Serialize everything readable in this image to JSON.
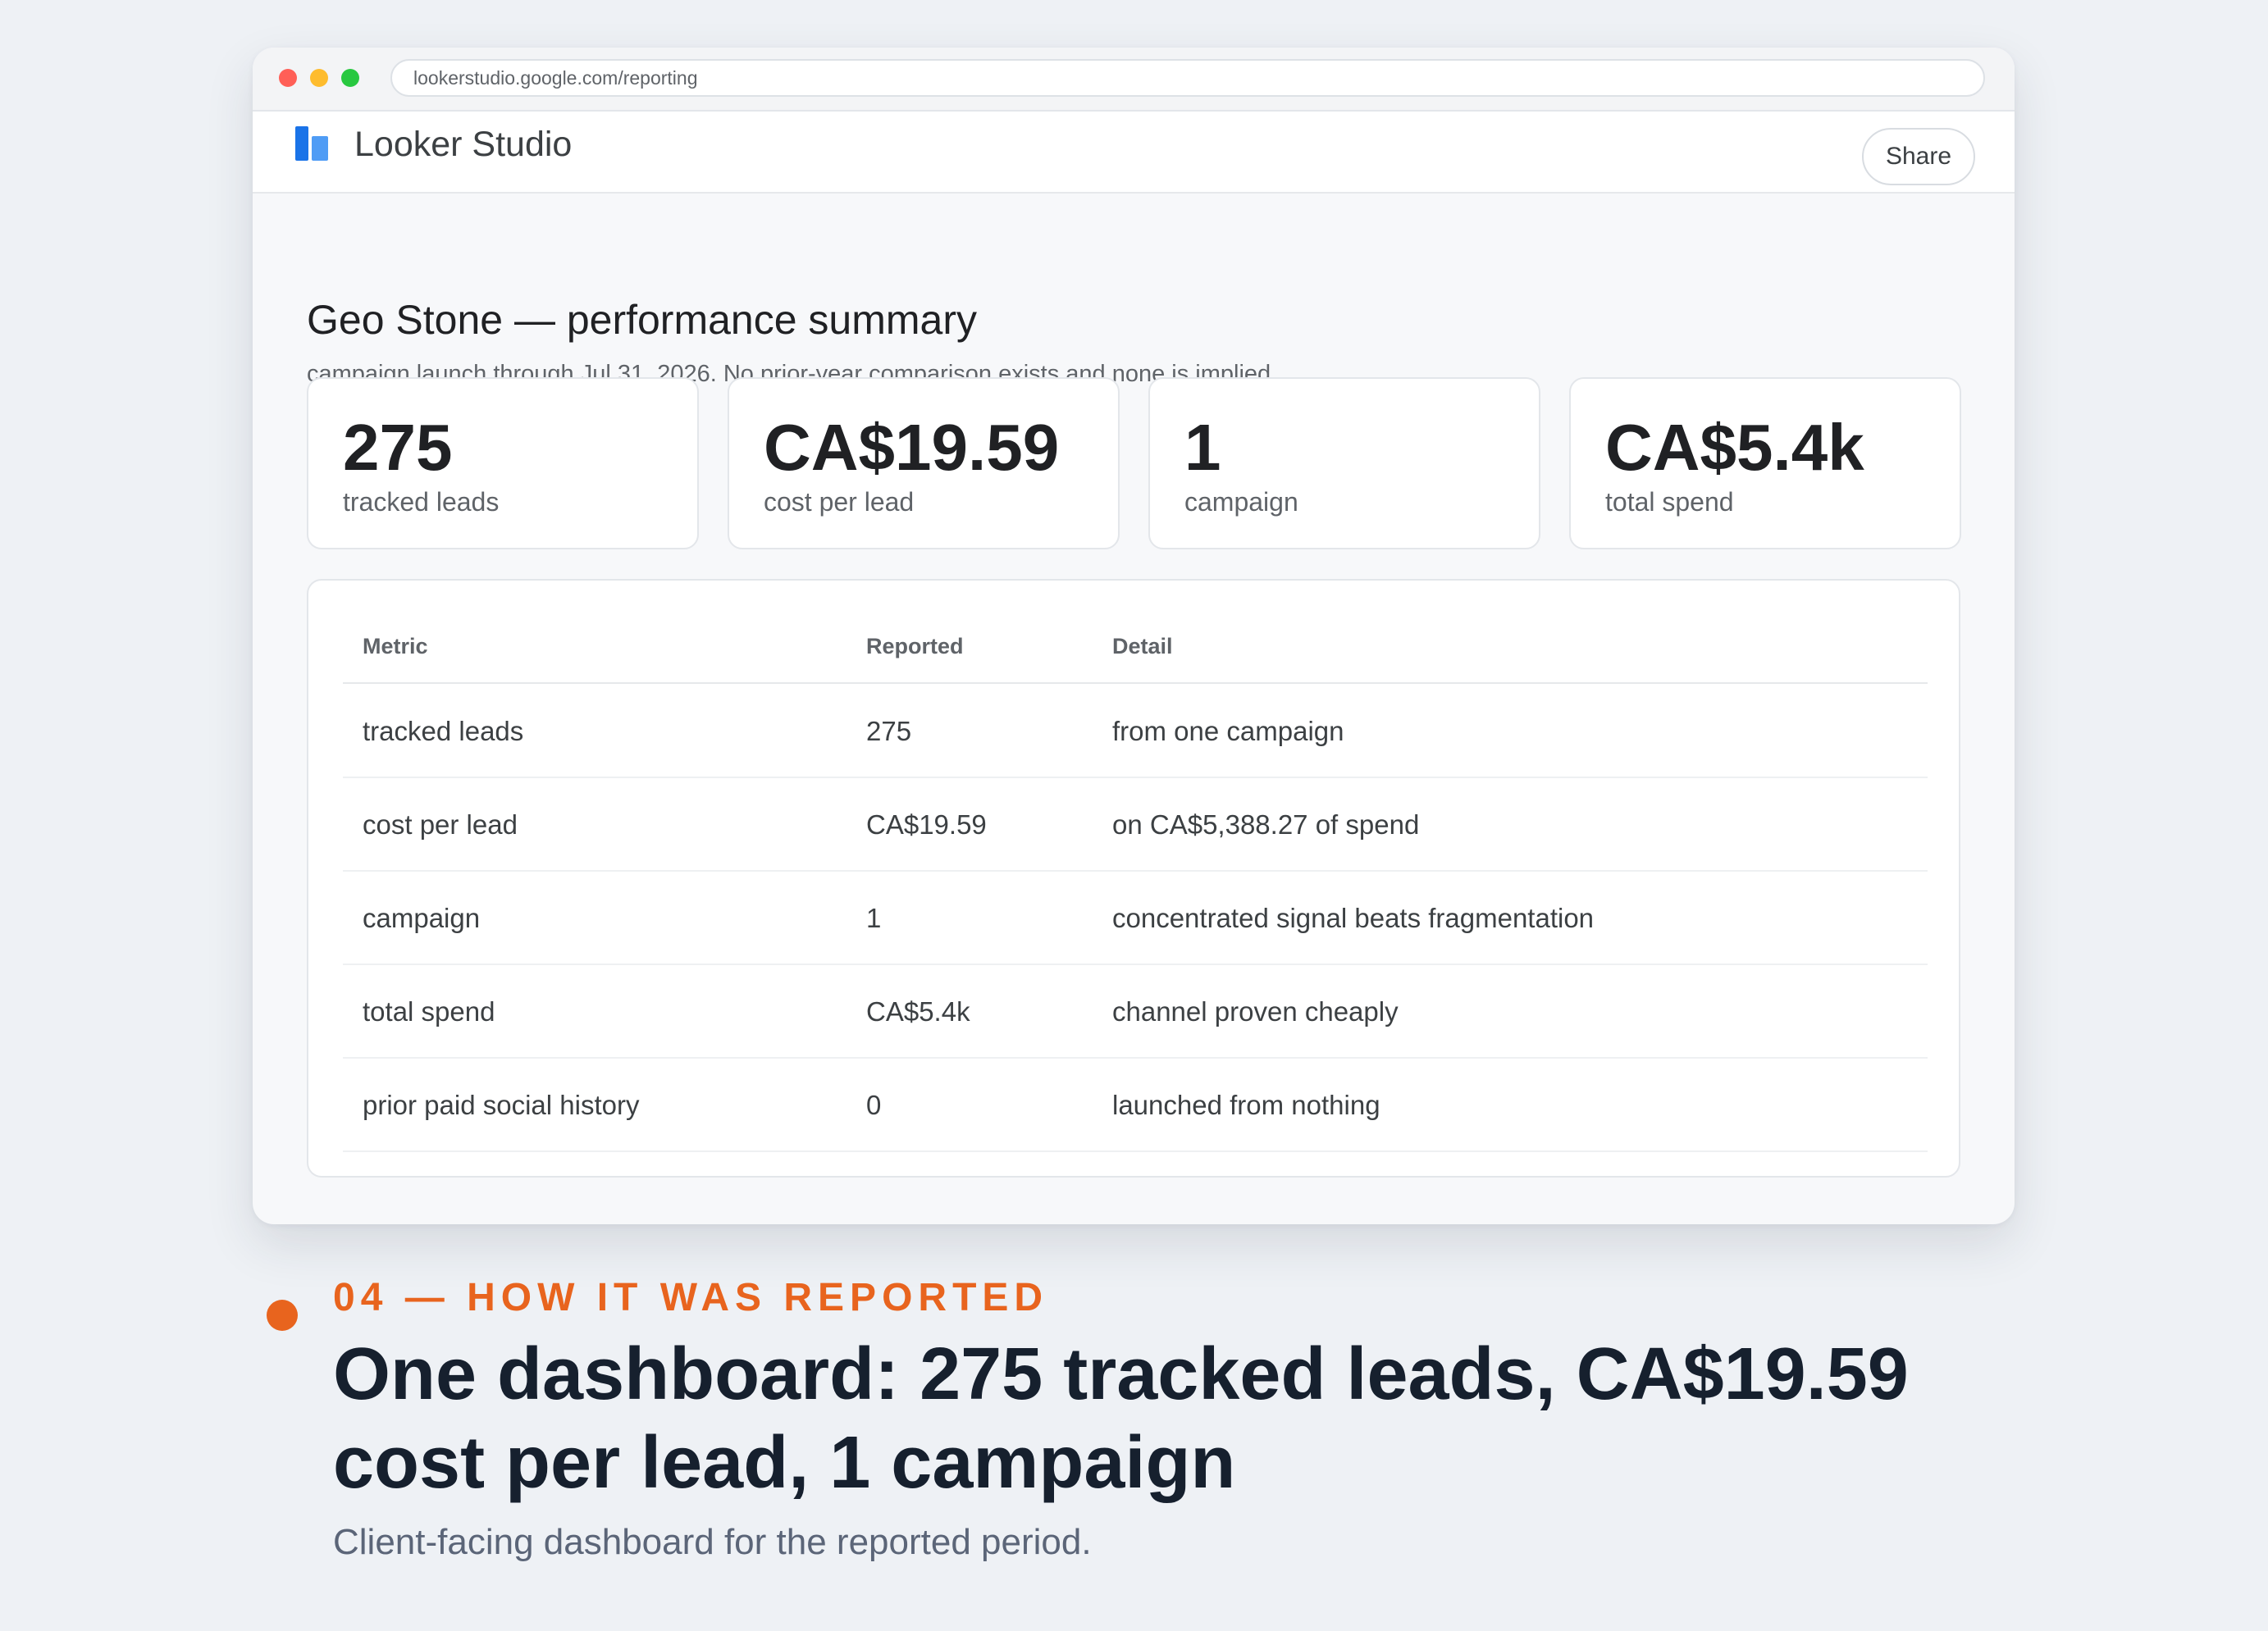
{
  "browser": {
    "url": "lookerstudio.google.com/reporting"
  },
  "app": {
    "name": "Looker Studio",
    "share_label": "Share"
  },
  "report": {
    "title": "Geo Stone — performance summary",
    "subtitle": "campaign launch through Jul 31, 2026. No prior-year comparison exists and none is implied."
  },
  "kpis": [
    {
      "value": "275",
      "label": "tracked leads"
    },
    {
      "value": "CA$19.59",
      "label": "cost per lead"
    },
    {
      "value": "1",
      "label": "campaign"
    },
    {
      "value": "CA$5.4k",
      "label": "total spend"
    }
  ],
  "table": {
    "headers": [
      "Metric",
      "Reported",
      "Detail"
    ],
    "rows": [
      [
        "tracked leads",
        "275",
        "from one campaign"
      ],
      [
        "cost per lead",
        "CA$19.59",
        "on CA$5,388.27 of spend"
      ],
      [
        "campaign",
        "1",
        "concentrated signal beats fragmentation"
      ],
      [
        "total spend",
        "CA$5.4k",
        "channel proven cheaply"
      ],
      [
        "prior paid social history",
        "0",
        "launched from nothing"
      ]
    ]
  },
  "caption": {
    "eyebrow": "04 — HOW IT WAS REPORTED",
    "headline": "One dashboard: 275 tracked leads, CA$19.59 cost per lead, 1 campaign",
    "description": "Client-facing dashboard for the reported period."
  },
  "colors": {
    "accent": "#e8641e",
    "brand_blue": "#1a73e8",
    "headline": "#16202e"
  }
}
